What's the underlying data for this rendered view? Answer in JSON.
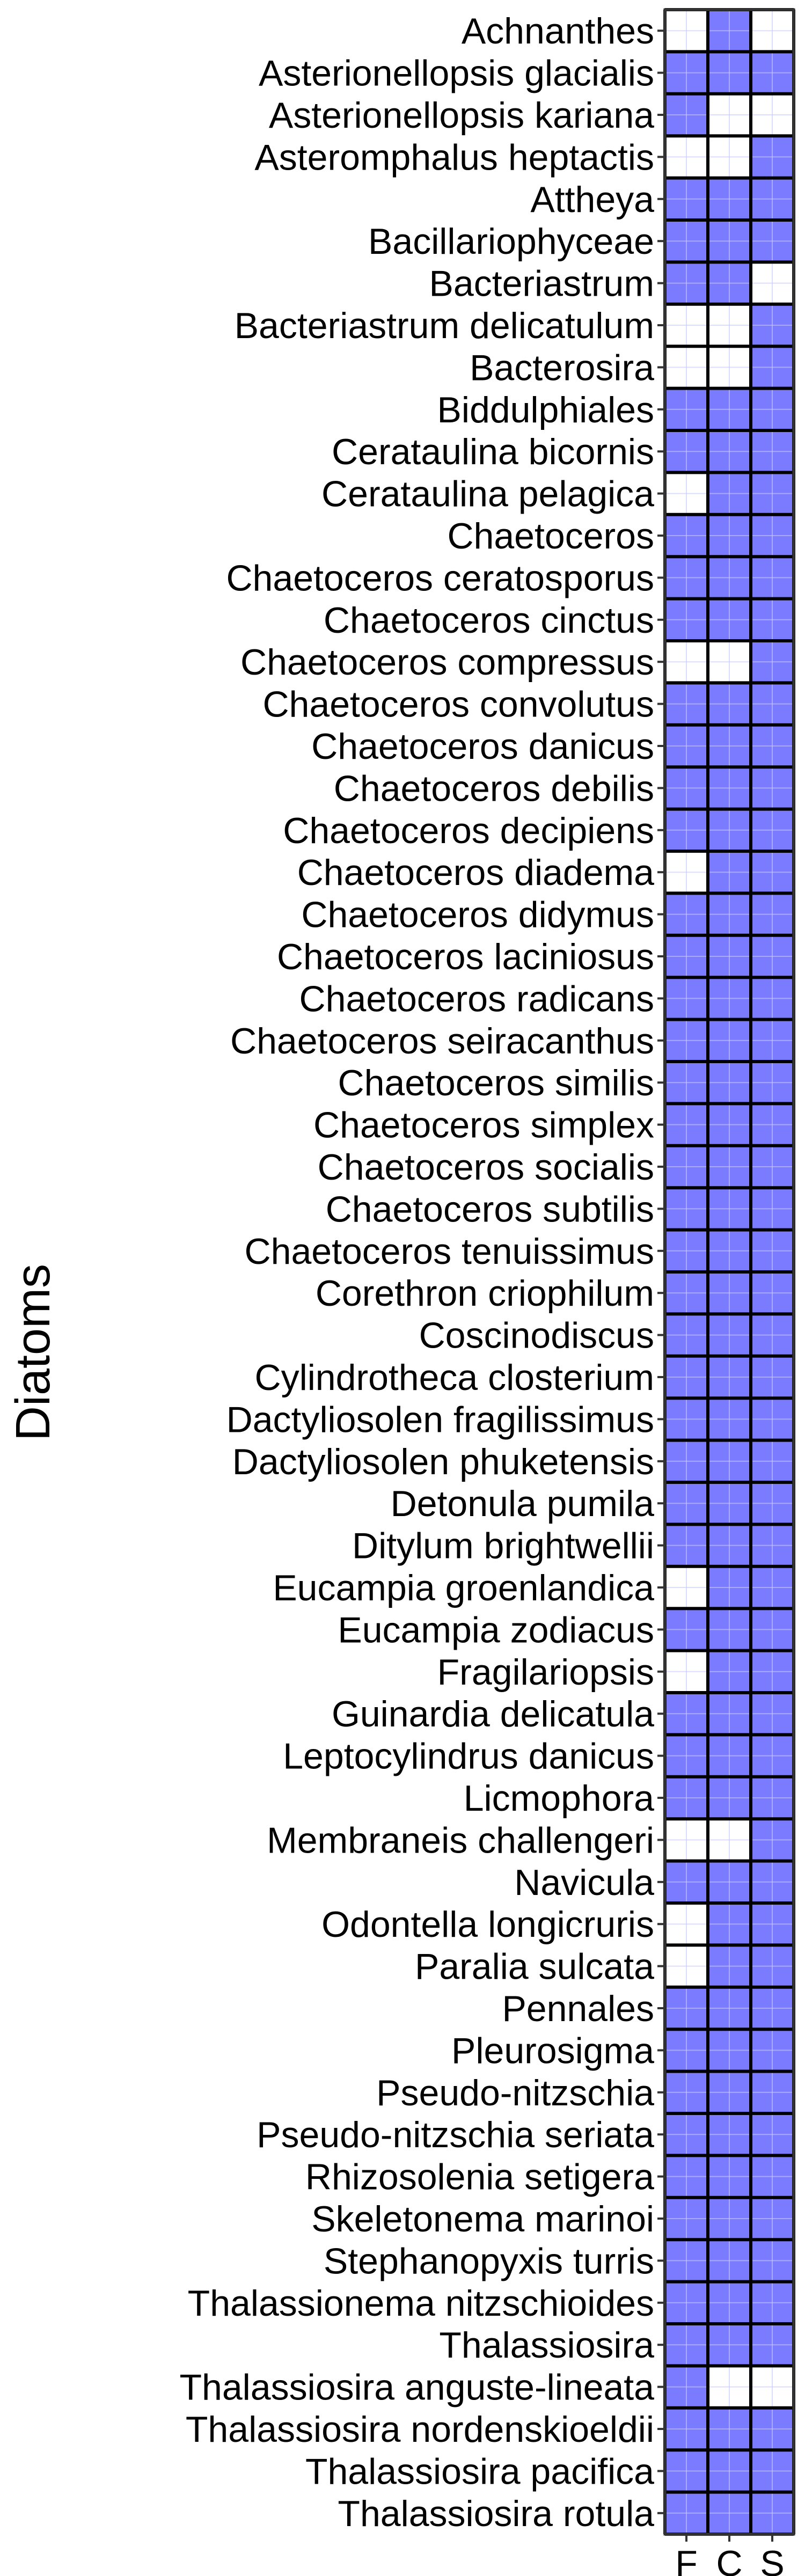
{
  "chart_data": {
    "type": "heatmap",
    "ylabel": "Diatoms",
    "columns": [
      "F",
      "C",
      "S"
    ],
    "present_color": "#7b7bff",
    "absent_color": "#ffffff",
    "rows": [
      {
        "name": "Achnanthes",
        "values": [
          0,
          1,
          0
        ]
      },
      {
        "name": "Asterionellopsis glacialis",
        "values": [
          1,
          1,
          1
        ]
      },
      {
        "name": "Asterionellopsis kariana",
        "values": [
          1,
          0,
          0
        ]
      },
      {
        "name": "Asteromphalus heptactis",
        "values": [
          0,
          0,
          1
        ]
      },
      {
        "name": "Attheya",
        "values": [
          1,
          1,
          1
        ]
      },
      {
        "name": "Bacillariophyceae",
        "values": [
          1,
          1,
          1
        ]
      },
      {
        "name": "Bacteriastrum",
        "values": [
          1,
          1,
          0
        ]
      },
      {
        "name": "Bacteriastrum delicatulum",
        "values": [
          0,
          0,
          1
        ]
      },
      {
        "name": "Bacterosira",
        "values": [
          0,
          0,
          1
        ]
      },
      {
        "name": "Biddulphiales",
        "values": [
          1,
          1,
          1
        ]
      },
      {
        "name": "Cerataulina bicornis",
        "values": [
          1,
          1,
          1
        ]
      },
      {
        "name": "Cerataulina pelagica",
        "values": [
          0,
          1,
          1
        ]
      },
      {
        "name": "Chaetoceros",
        "values": [
          1,
          1,
          1
        ]
      },
      {
        "name": "Chaetoceros ceratosporus",
        "values": [
          1,
          1,
          1
        ]
      },
      {
        "name": "Chaetoceros cinctus",
        "values": [
          1,
          1,
          1
        ]
      },
      {
        "name": "Chaetoceros compressus",
        "values": [
          0,
          0,
          1
        ]
      },
      {
        "name": "Chaetoceros convolutus",
        "values": [
          1,
          1,
          1
        ]
      },
      {
        "name": "Chaetoceros danicus",
        "values": [
          1,
          1,
          1
        ]
      },
      {
        "name": "Chaetoceros debilis",
        "values": [
          1,
          1,
          1
        ]
      },
      {
        "name": "Chaetoceros decipiens",
        "values": [
          1,
          1,
          1
        ]
      },
      {
        "name": "Chaetoceros diadema",
        "values": [
          0,
          1,
          1
        ]
      },
      {
        "name": "Chaetoceros didymus",
        "values": [
          1,
          1,
          1
        ]
      },
      {
        "name": "Chaetoceros laciniosus",
        "values": [
          1,
          1,
          1
        ]
      },
      {
        "name": "Chaetoceros radicans",
        "values": [
          1,
          1,
          1
        ]
      },
      {
        "name": "Chaetoceros seiracanthus",
        "values": [
          1,
          1,
          1
        ]
      },
      {
        "name": "Chaetoceros similis",
        "values": [
          1,
          1,
          1
        ]
      },
      {
        "name": "Chaetoceros simplex",
        "values": [
          1,
          1,
          1
        ]
      },
      {
        "name": "Chaetoceros socialis",
        "values": [
          1,
          1,
          1
        ]
      },
      {
        "name": "Chaetoceros subtilis",
        "values": [
          1,
          1,
          1
        ]
      },
      {
        "name": "Chaetoceros tenuissimus",
        "values": [
          1,
          1,
          1
        ]
      },
      {
        "name": "Corethron criophilum",
        "values": [
          1,
          1,
          1
        ]
      },
      {
        "name": "Coscinodiscus",
        "values": [
          1,
          1,
          1
        ]
      },
      {
        "name": "Cylindrotheca closterium",
        "values": [
          1,
          1,
          1
        ]
      },
      {
        "name": "Dactyliosolen fragilissimus",
        "values": [
          1,
          1,
          1
        ]
      },
      {
        "name": "Dactyliosolen phuketensis",
        "values": [
          1,
          1,
          1
        ]
      },
      {
        "name": "Detonula pumila",
        "values": [
          1,
          1,
          1
        ]
      },
      {
        "name": "Ditylum brightwellii",
        "values": [
          1,
          1,
          1
        ]
      },
      {
        "name": "Eucampia groenlandica",
        "values": [
          0,
          1,
          1
        ]
      },
      {
        "name": "Eucampia zodiacus",
        "values": [
          1,
          1,
          1
        ]
      },
      {
        "name": "Fragilariopsis",
        "values": [
          0,
          1,
          1
        ]
      },
      {
        "name": "Guinardia delicatula",
        "values": [
          1,
          1,
          1
        ]
      },
      {
        "name": "Leptocylindrus danicus",
        "values": [
          1,
          1,
          1
        ]
      },
      {
        "name": "Licmophora",
        "values": [
          1,
          1,
          1
        ]
      },
      {
        "name": "Membraneis challengeri",
        "values": [
          0,
          0,
          1
        ]
      },
      {
        "name": "Navicula",
        "values": [
          1,
          1,
          1
        ]
      },
      {
        "name": "Odontella longicruris",
        "values": [
          0,
          1,
          1
        ]
      },
      {
        "name": "Paralia sulcata",
        "values": [
          0,
          1,
          1
        ]
      },
      {
        "name": "Pennales",
        "values": [
          1,
          1,
          1
        ]
      },
      {
        "name": "Pleurosigma",
        "values": [
          1,
          1,
          1
        ]
      },
      {
        "name": "Pseudo-nitzschia",
        "values": [
          1,
          1,
          1
        ]
      },
      {
        "name": "Pseudo-nitzschia seriata",
        "values": [
          1,
          1,
          1
        ]
      },
      {
        "name": "Rhizosolenia setigera",
        "values": [
          1,
          1,
          1
        ]
      },
      {
        "name": "Skeletonema marinoi",
        "values": [
          1,
          1,
          1
        ]
      },
      {
        "name": "Stephanopyxis turris",
        "values": [
          1,
          1,
          1
        ]
      },
      {
        "name": "Thalassionema nitzschioides",
        "values": [
          1,
          1,
          1
        ]
      },
      {
        "name": "Thalassiosira",
        "values": [
          1,
          1,
          1
        ]
      },
      {
        "name": "Thalassiosira anguste-lineata",
        "values": [
          1,
          0,
          0
        ]
      },
      {
        "name": "Thalassiosira nordenskioeldii",
        "values": [
          1,
          1,
          1
        ]
      },
      {
        "name": "Thalassiosira pacifica",
        "values": [
          1,
          1,
          1
        ]
      },
      {
        "name": "Thalassiosira rotula",
        "values": [
          1,
          1,
          1
        ]
      }
    ]
  }
}
